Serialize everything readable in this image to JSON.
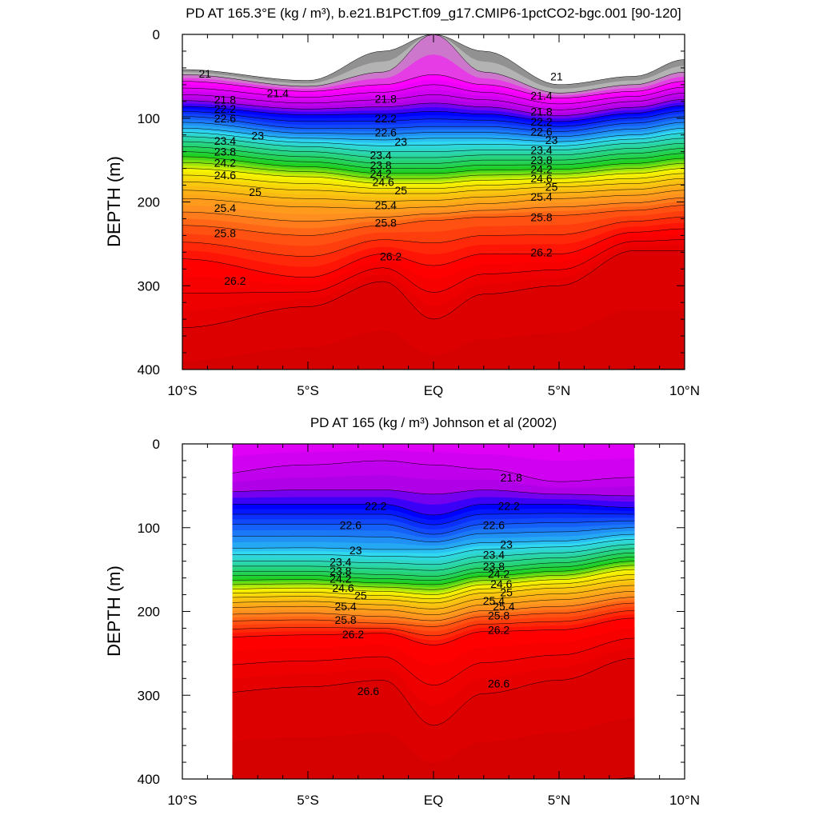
{
  "chart_data": [
    {
      "type": "contour",
      "title": "PD AT 165.3°E (kg / m³), b.e21.B1PCT.f09_g17.CMIP6-1pctCO2-bgc.001 [90-120]",
      "ylabel": "DEPTH (m)",
      "xlim": [
        -10,
        10
      ],
      "ylim": [
        400,
        0
      ],
      "x_ticks": [
        -10,
        -5,
        0,
        5,
        10
      ],
      "x_tick_labels": [
        "10°S",
        "5°S",
        "EQ",
        "5°N",
        "10°N"
      ],
      "y_ticks": [
        0,
        100,
        200,
        300,
        400
      ],
      "y_tick_labels": [
        "0",
        "100",
        "200",
        "300",
        "400"
      ],
      "data_x_range": [
        -10,
        10
      ],
      "contour_interval": 0.2,
      "contour_labels": [
        {
          "text": "21",
          "x": -9.1,
          "y": 47
        },
        {
          "text": "21.4",
          "x": -6.2,
          "y": 70
        },
        {
          "text": "21.8",
          "x": -8.3,
          "y": 78
        },
        {
          "text": "22.2",
          "x": -8.3,
          "y": 89
        },
        {
          "text": "22.6",
          "x": -8.3,
          "y": 100
        },
        {
          "text": "23",
          "x": -7.0,
          "y": 121
        },
        {
          "text": "23.4",
          "x": -8.3,
          "y": 127
        },
        {
          "text": "23.8",
          "x": -8.3,
          "y": 140
        },
        {
          "text": "24.2",
          "x": -8.3,
          "y": 153
        },
        {
          "text": "24.6",
          "x": -8.3,
          "y": 168
        },
        {
          "text": "25",
          "x": -7.1,
          "y": 188
        },
        {
          "text": "25.4",
          "x": -8.3,
          "y": 207
        },
        {
          "text": "25.8",
          "x": -8.3,
          "y": 237
        },
        {
          "text": "26.2",
          "x": -7.9,
          "y": 294
        },
        {
          "text": "21.8",
          "x": -1.9,
          "y": 77
        },
        {
          "text": "22.2",
          "x": -1.9,
          "y": 100
        },
        {
          "text": "22.6",
          "x": -1.9,
          "y": 117
        },
        {
          "text": "23",
          "x": -1.3,
          "y": 128
        },
        {
          "text": "23.4",
          "x": -2.1,
          "y": 144
        },
        {
          "text": "23.8",
          "x": -2.1,
          "y": 156
        },
        {
          "text": "24.2",
          "x": -2.1,
          "y": 166
        },
        {
          "text": "24.6",
          "x": -2.0,
          "y": 176
        },
        {
          "text": "25",
          "x": -1.3,
          "y": 186
        },
        {
          "text": "25.4",
          "x": -1.9,
          "y": 204
        },
        {
          "text": "25.8",
          "x": -1.9,
          "y": 225
        },
        {
          "text": "26.2",
          "x": -1.7,
          "y": 265
        },
        {
          "text": "21",
          "x": 4.9,
          "y": 50
        },
        {
          "text": "21.4",
          "x": 4.3,
          "y": 73
        },
        {
          "text": "21.8",
          "x": 4.3,
          "y": 92
        },
        {
          "text": "22.2",
          "x": 4.3,
          "y": 104
        },
        {
          "text": "22.6",
          "x": 4.3,
          "y": 116
        },
        {
          "text": "23",
          "x": 4.7,
          "y": 126
        },
        {
          "text": "23.4",
          "x": 4.3,
          "y": 138
        },
        {
          "text": "23.8",
          "x": 4.3,
          "y": 150
        },
        {
          "text": "24.2",
          "x": 4.3,
          "y": 161
        },
        {
          "text": "24.6",
          "x": 4.3,
          "y": 172
        },
        {
          "text": "25",
          "x": 4.7,
          "y": 182
        },
        {
          "text": "25.4",
          "x": 4.3,
          "y": 194
        },
        {
          "text": "25.8",
          "x": 4.3,
          "y": 218
        },
        {
          "text": "26.2",
          "x": 4.3,
          "y": 260
        }
      ]
    },
    {
      "type": "contour",
      "title": "PD AT 165 (kg / m³) Johnson et al (2002)",
      "ylabel": "DEPTH (m)",
      "xlim": [
        -10,
        10
      ],
      "ylim": [
        400,
        0
      ],
      "x_ticks": [
        -10,
        -5,
        0,
        5,
        10
      ],
      "x_tick_labels": [
        "10°S",
        "5°S",
        "EQ",
        "5°N",
        "10°N"
      ],
      "y_ticks": [
        0,
        100,
        200,
        300,
        400
      ],
      "y_tick_labels": [
        "0",
        "100",
        "200",
        "300",
        "400"
      ],
      "data_x_range": [
        -8,
        8
      ],
      "contour_interval": 0.2,
      "contour_labels": [
        {
          "text": "21.8",
          "x": 3.1,
          "y": 40
        },
        {
          "text": "22.2",
          "x": -2.3,
          "y": 74
        },
        {
          "text": "22.6",
          "x": -3.3,
          "y": 97
        },
        {
          "text": "23",
          "x": -3.1,
          "y": 127
        },
        {
          "text": "23.4",
          "x": -3.7,
          "y": 141
        },
        {
          "text": "23.8",
          "x": -3.7,
          "y": 152
        },
        {
          "text": "24.2",
          "x": -3.7,
          "y": 161
        },
        {
          "text": "24.6",
          "x": -3.6,
          "y": 172
        },
        {
          "text": "25",
          "x": -2.9,
          "y": 181
        },
        {
          "text": "25.4",
          "x": -3.5,
          "y": 194
        },
        {
          "text": "25.8",
          "x": -3.5,
          "y": 210
        },
        {
          "text": "26.2",
          "x": -3.2,
          "y": 227
        },
        {
          "text": "22.2",
          "x": 3.0,
          "y": 74
        },
        {
          "text": "22.6",
          "x": 2.4,
          "y": 97
        },
        {
          "text": "23",
          "x": 2.9,
          "y": 120
        },
        {
          "text": "23.4",
          "x": 2.4,
          "y": 132
        },
        {
          "text": "23.8",
          "x": 2.4,
          "y": 146
        },
        {
          "text": "24.2",
          "x": 2.6,
          "y": 155
        },
        {
          "text": "24.6",
          "x": 2.7,
          "y": 167
        },
        {
          "text": "25",
          "x": 2.9,
          "y": 177
        },
        {
          "text": "25.4",
          "x": 2.4,
          "y": 187
        },
        {
          "text": "25.4",
          "x": 2.8,
          "y": 194
        },
        {
          "text": "25.8",
          "x": 2.6,
          "y": 205
        },
        {
          "text": "26.2",
          "x": 2.6,
          "y": 222
        },
        {
          "text": "26.6",
          "x": -2.6,
          "y": 295
        },
        {
          "text": "26.6",
          "x": 2.6,
          "y": 286
        }
      ]
    }
  ],
  "palette": {
    "grey_dark": "#6e6e6e",
    "grey_light": "#b3b3b3",
    "magenta": "#ff00ff",
    "violet": "#b000e8",
    "blue": "#0000ff",
    "cyan": "#30d8f0",
    "green": "#20d020",
    "yellow": "#f4f400",
    "orange": "#ff9020",
    "red": "#ff0000",
    "dark_red": "#c80000"
  }
}
